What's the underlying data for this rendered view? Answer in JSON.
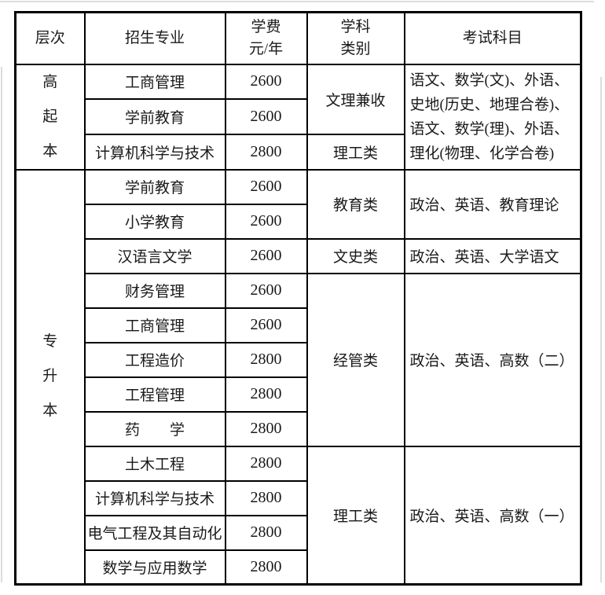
{
  "page": {
    "background": "#ffffff",
    "edge_line_color": "#dcdcdc"
  },
  "table": {
    "border_color": "#000000",
    "text_color": "#1a1a1a",
    "header": {
      "level": "层次",
      "major": "招生专业",
      "fee": "学费\n元/年",
      "category": "学科\n类别",
      "exam": "考试科目"
    },
    "sections": [
      {
        "level": "高\n起\n本",
        "rows": [
          {
            "major": "工商管理",
            "fee": "2600"
          },
          {
            "major": "学前教育",
            "fee": "2600"
          },
          {
            "major": "计算机科学与技术",
            "fee": "2800"
          }
        ],
        "categories": [
          {
            "label": "文理兼收",
            "span": 2
          },
          {
            "label": "理工类",
            "span": 1
          }
        ],
        "exams": [
          {
            "text": "语文、数学(文)、外语、\n史地(历史、地理合卷)、\n语文、数学(理)、外语、\n理化(物理、化学合卷)",
            "span": 3
          }
        ]
      },
      {
        "level": "专\n升\n本",
        "rows": [
          {
            "major": "学前教育",
            "fee": "2600"
          },
          {
            "major": "小学教育",
            "fee": "2600"
          },
          {
            "major": "汉语言文学",
            "fee": "2600"
          },
          {
            "major": "财务管理",
            "fee": "2600"
          },
          {
            "major": "工商管理",
            "fee": "2600"
          },
          {
            "major": "工程造价",
            "fee": "2800"
          },
          {
            "major": "工程管理",
            "fee": "2800"
          },
          {
            "major": "药　　学",
            "fee": "2800"
          },
          {
            "major": "土木工程",
            "fee": "2800"
          },
          {
            "major": "计算机科学与技术",
            "fee": "2800"
          },
          {
            "major": "电气工程及其自动化",
            "fee": "2800"
          },
          {
            "major": "数学与应用数学",
            "fee": "2800"
          }
        ],
        "categories": [
          {
            "label": "教育类",
            "span": 2
          },
          {
            "label": "文史类",
            "span": 1
          },
          {
            "label": "经管类",
            "span": 5
          },
          {
            "label": "理工类",
            "span": 4
          }
        ],
        "exams": [
          {
            "text": "政治、英语、教育理论",
            "span": 2
          },
          {
            "text": "政治、英语、大学语文",
            "span": 1
          },
          {
            "text": "政治、英语、高数（二）",
            "span": 5
          },
          {
            "text": "政治、英语、高数（一）",
            "span": 4
          }
        ]
      }
    ]
  }
}
